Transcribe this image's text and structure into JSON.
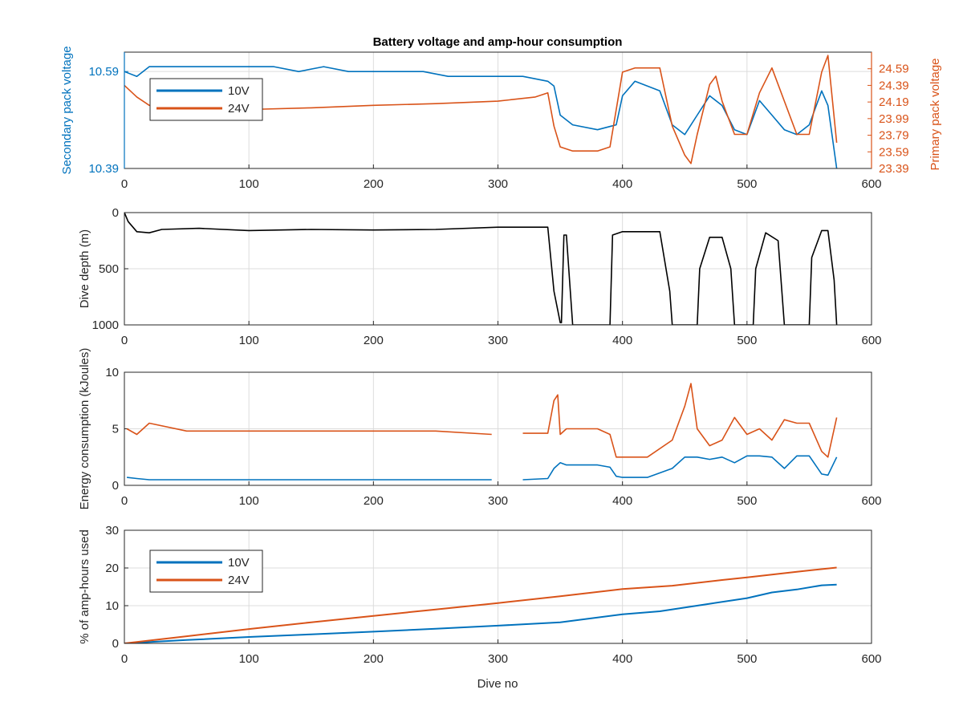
{
  "figure": {
    "title": "Battery voltage and amp-hour consumption",
    "xlabel": "Dive no"
  },
  "colors": {
    "series_10v": "#0072BD",
    "series_24v": "#D95319",
    "depth": "#000000",
    "grid": "#dcdcdc",
    "axis": "#262626"
  },
  "chart_data": [
    {
      "type": "line",
      "ylabel": "Secondary pack voltage",
      "ylabel_right": "Primary pack voltage",
      "xlim": [
        0,
        600
      ],
      "xticks": [
        0,
        100,
        200,
        300,
        400,
        500,
        600
      ],
      "ylim": [
        10.39,
        10.63
      ],
      "yticks": [
        10.39,
        10.59
      ],
      "ylim_right": [
        23.39,
        24.79
      ],
      "yticks_right": [
        23.39,
        23.59,
        23.79,
        23.99,
        24.19,
        24.39,
        24.59
      ],
      "grid": true,
      "legend": {
        "placement": "top-left",
        "entries": [
          "10V",
          "24V"
        ]
      },
      "series": [
        {
          "name": "10V",
          "axis": "left",
          "x": [
            0,
            10,
            20,
            30,
            40,
            60,
            80,
            100,
            120,
            140,
            160,
            180,
            200,
            220,
            240,
            260,
            280,
            300,
            320,
            340,
            345,
            350,
            360,
            380,
            395,
            400,
            410,
            420,
            430,
            440,
            450,
            460,
            470,
            480,
            490,
            500,
            510,
            520,
            530,
            540,
            550,
            560,
            565,
            572
          ],
          "y": [
            10.59,
            10.58,
            10.6,
            10.6,
            10.6,
            10.6,
            10.6,
            10.6,
            10.6,
            10.59,
            10.6,
            10.59,
            10.59,
            10.59,
            10.59,
            10.58,
            10.58,
            10.58,
            10.58,
            10.57,
            10.56,
            10.5,
            10.48,
            10.47,
            10.48,
            10.54,
            10.57,
            10.56,
            10.55,
            10.48,
            10.46,
            10.5,
            10.54,
            10.52,
            10.47,
            10.46,
            10.53,
            10.5,
            10.47,
            10.46,
            10.48,
            10.55,
            10.52,
            10.39
          ]
        },
        {
          "name": "24V",
          "axis": "right",
          "x": [
            0,
            10,
            20,
            30,
            40,
            60,
            80,
            100,
            150,
            200,
            250,
            300,
            330,
            340,
            345,
            350,
            360,
            380,
            390,
            400,
            410,
            430,
            440,
            450,
            455,
            460,
            470,
            475,
            480,
            490,
            500,
            510,
            520,
            530,
            540,
            550,
            560,
            565,
            572
          ],
          "y": [
            24.39,
            24.25,
            24.15,
            24.1,
            24.08,
            24.1,
            24.1,
            24.1,
            24.12,
            24.15,
            24.17,
            24.2,
            24.25,
            24.3,
            23.9,
            23.65,
            23.6,
            23.6,
            23.65,
            24.55,
            24.6,
            24.6,
            23.9,
            23.55,
            23.45,
            23.8,
            24.4,
            24.5,
            24.2,
            23.8,
            23.8,
            24.3,
            24.6,
            24.2,
            23.8,
            23.8,
            24.55,
            24.75,
            23.7
          ]
        }
      ]
    },
    {
      "type": "line",
      "ylabel": "Dive depth (m)",
      "xlim": [
        0,
        600
      ],
      "xticks": [
        0,
        100,
        200,
        300,
        400,
        500,
        600
      ],
      "ylim": [
        1000,
        0
      ],
      "yticks": [
        0,
        500,
        1000
      ],
      "ytick_labels": [
        "0",
        "500",
        "1000"
      ],
      "grid": true,
      "series": [
        {
          "x": [
            0,
            3,
            10,
            20,
            30,
            60,
            100,
            150,
            200,
            250,
            300,
            340,
            345,
            350,
            351,
            353,
            355,
            360,
            390,
            392,
            400,
            410,
            420,
            430,
            438,
            440,
            460,
            462,
            470,
            480,
            487,
            490,
            505,
            507,
            515,
            525,
            530,
            550,
            552,
            560,
            565,
            570,
            572
          ],
          "y": [
            0,
            80,
            170,
            180,
            150,
            140,
            160,
            150,
            155,
            150,
            130,
            130,
            700,
            980,
            980,
            200,
            200,
            1000,
            1000,
            200,
            170,
            170,
            170,
            170,
            700,
            1000,
            1000,
            500,
            220,
            220,
            500,
            1000,
            1000,
            500,
            180,
            250,
            1000,
            1000,
            400,
            160,
            160,
            600,
            1000
          ]
        }
      ]
    },
    {
      "type": "line",
      "ylabel": "Energy consumption (kJoules)",
      "xlim": [
        0,
        600
      ],
      "xticks": [
        0,
        100,
        200,
        300,
        400,
        500,
        600
      ],
      "ylim": [
        0,
        10
      ],
      "yticks": [
        0,
        5,
        10
      ],
      "grid": true,
      "series": [
        {
          "name": "10V",
          "x": [
            2,
            10,
            20,
            50,
            100,
            150,
            200,
            250,
            295,
            300,
            320,
            340,
            345,
            350,
            355,
            360,
            380,
            390,
            395,
            400,
            420,
            440,
            450,
            460,
            470,
            480,
            490,
            500,
            510,
            520,
            530,
            540,
            550,
            560,
            565,
            572
          ],
          "y": [
            0.7,
            0.6,
            0.5,
            0.5,
            0.5,
            0.5,
            0.5,
            0.5,
            0.5,
            null,
            0.5,
            0.6,
            1.5,
            2.0,
            1.8,
            1.8,
            1.8,
            1.6,
            0.8,
            0.7,
            0.7,
            1.5,
            2.5,
            2.5,
            2.3,
            2.5,
            2.0,
            2.6,
            2.6,
            2.5,
            1.5,
            2.6,
            2.6,
            1.0,
            0.9,
            2.5
          ]
        },
        {
          "name": "24V",
          "x": [
            2,
            10,
            20,
            50,
            100,
            150,
            200,
            250,
            295,
            300,
            320,
            340,
            345,
            348,
            350,
            355,
            360,
            380,
            390,
            395,
            400,
            420,
            440,
            450,
            455,
            460,
            470,
            480,
            490,
            500,
            510,
            520,
            530,
            540,
            550,
            560,
            565,
            572
          ],
          "y": [
            5.0,
            4.5,
            5.5,
            4.8,
            4.8,
            4.8,
            4.8,
            4.8,
            4.5,
            null,
            4.6,
            4.6,
            7.5,
            8.0,
            4.5,
            5.0,
            5.0,
            5.0,
            4.5,
            2.5,
            2.5,
            2.5,
            4.0,
            7.0,
            9.0,
            5.0,
            3.5,
            4.0,
            6.0,
            4.5,
            5.0,
            4.0,
            5.8,
            5.5,
            5.5,
            3.0,
            2.5,
            6.0
          ]
        }
      ]
    },
    {
      "type": "line",
      "ylabel": "% of amp-hours used",
      "xlabel": "Dive no",
      "xlim": [
        0,
        600
      ],
      "xticks": [
        0,
        100,
        200,
        300,
        400,
        500,
        600
      ],
      "ylim": [
        0,
        30
      ],
      "yticks": [
        0,
        10,
        20,
        30
      ],
      "grid": true,
      "legend": {
        "placement": "top-left",
        "entries": [
          "10V",
          "24V"
        ]
      },
      "series": [
        {
          "name": "10V",
          "x": [
            0,
            50,
            100,
            150,
            200,
            250,
            300,
            350,
            400,
            430,
            470,
            500,
            520,
            540,
            560,
            572
          ],
          "y": [
            0,
            0.9,
            1.7,
            2.4,
            3.1,
            3.9,
            4.7,
            5.6,
            7.7,
            8.5,
            10.5,
            12.0,
            13.5,
            14.3,
            15.4,
            15.6
          ]
        },
        {
          "name": "24V",
          "x": [
            0,
            50,
            100,
            150,
            200,
            250,
            300,
            350,
            400,
            440,
            480,
            500,
            540,
            572
          ],
          "y": [
            0,
            1.9,
            3.8,
            5.6,
            7.3,
            9.0,
            10.7,
            12.5,
            14.4,
            15.3,
            16.8,
            17.5,
            19.0,
            20.1
          ]
        }
      ]
    }
  ]
}
